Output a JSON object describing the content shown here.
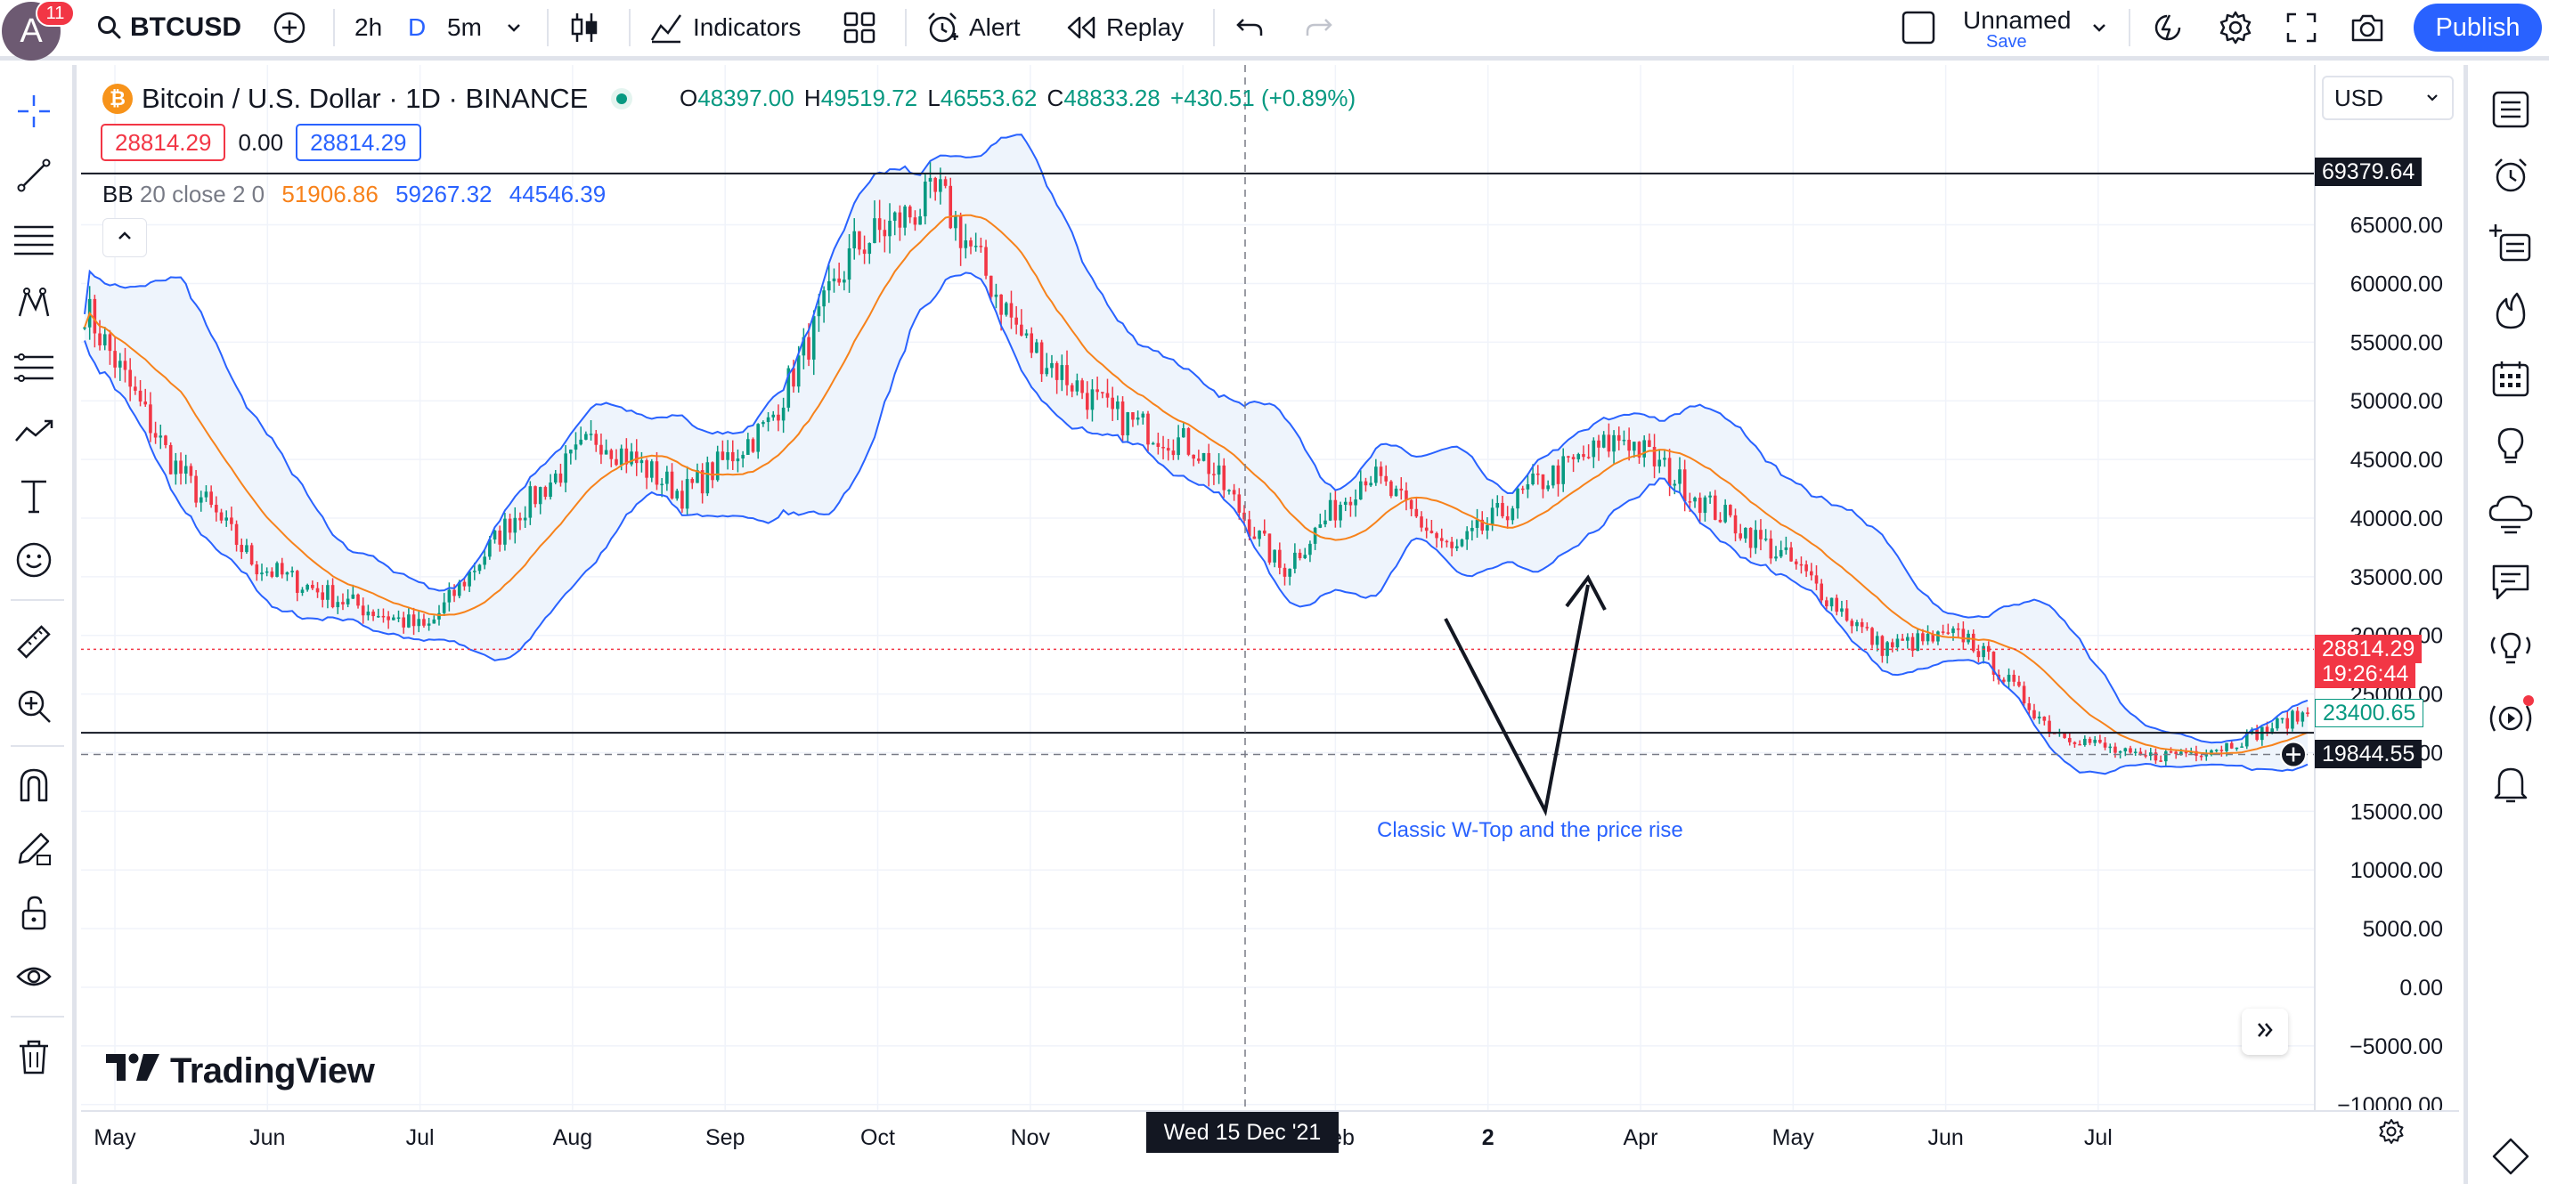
{
  "header": {
    "avatar_letter": "A",
    "notification_count": "11",
    "symbol": "BTCUSD",
    "intervals": [
      "2h",
      "D",
      "5m"
    ],
    "active_interval": "D",
    "indicators_label": "Indicators",
    "alert_label": "Alert",
    "replay_label": "Replay",
    "layout_name": "Unnamed",
    "save_label": "Save",
    "publish_label": "Publish"
  },
  "legend": {
    "coin_glyph": "₿",
    "title": "Bitcoin / U.S. Dollar · 1D · BINANCE",
    "open_key": "O",
    "open": "48397.00",
    "high_key": "H",
    "high": "49519.72",
    "low_key": "L",
    "low": "46553.62",
    "close_key": "C",
    "close": "48833.28",
    "change": "+430.51 (+0.89%)",
    "sell_price": "28814.29",
    "spread": "0.00",
    "buy_price": "28814.29",
    "bb_name": "BB",
    "bb_params": "20 close 2 0",
    "bb_basis": "51906.86",
    "bb_upper": "59267.32",
    "bb_lower": "44546.39"
  },
  "currency": "USD",
  "annotation_text": "Classic W-Top and the price rise",
  "brand": "TradingView",
  "crosshair_time_label": "Wed 15 Dec '21",
  "price_scale": {
    "labels": [
      "65000.00",
      "60000.00",
      "55000.00",
      "50000.00",
      "45000.00",
      "40000.00",
      "35000.00",
      "30000.00",
      "25000.00",
      "20000.00",
      "15000.00",
      "10000.00",
      "5000.00",
      "0.00",
      "−5000.00",
      "−10000.00"
    ],
    "values": [
      65000,
      60000,
      55000,
      50000,
      45000,
      40000,
      35000,
      30000,
      25000,
      20000,
      15000,
      10000,
      5000,
      0,
      -5000,
      -10000
    ],
    "hline_top_label": "69379.64",
    "hline_top_value": 69379.64,
    "last_price_label": "28814.29",
    "last_price_value": 28814.29,
    "countdown_label": "19:26:44",
    "green_label": "23400.65",
    "hline_bottom_value": 21700,
    "crosshair_price_label": "19844.55",
    "crosshair_price_value": 19844.55
  },
  "time_scale": {
    "labels": [
      "May",
      "Jun",
      "Jul",
      "Aug",
      "Sep",
      "Oct",
      "Nov",
      "2",
      "Feb",
      "2",
      "Apr",
      "May",
      "Jun",
      "Jul"
    ]
  },
  "colors": {
    "up": "#089981",
    "down": "#f23645",
    "bb_band": "#2962ff",
    "bb_basis": "#f7821b",
    "bb_fill": "#eef4fc",
    "accent": "#2962ff"
  },
  "chart_data": {
    "type": "candlestick",
    "title": "Bitcoin / U.S. Dollar · 1D · BINANCE",
    "x_range": [
      "2021-05",
      "2022-07"
    ],
    "ylim": [
      -10000,
      70000
    ],
    "approx_close_path": [
      {
        "t": "2021-05",
        "close": 58000
      },
      {
        "t": "2021-05-mid",
        "close": 45000
      },
      {
        "t": "2021-06",
        "close": 36000
      },
      {
        "t": "2021-07",
        "close": 33000
      },
      {
        "t": "2021-07-20",
        "close": 30500
      },
      {
        "t": "2021-08",
        "close": 40000
      },
      {
        "t": "2021-09",
        "close": 47000
      },
      {
        "t": "2021-09-20",
        "close": 42000
      },
      {
        "t": "2021-10",
        "close": 48000
      },
      {
        "t": "2021-10-20",
        "close": 63000
      },
      {
        "t": "2021-11-10",
        "close": 67500
      },
      {
        "t": "2021-12",
        "close": 55000
      },
      {
        "t": "2021-12-15",
        "close": 48833
      },
      {
        "t": "2022-01",
        "close": 46000
      },
      {
        "t": "2022-01-24",
        "close": 35500
      },
      {
        "t": "2022-02-10",
        "close": 44000
      },
      {
        "t": "2022-02-24",
        "close": 37000
      },
      {
        "t": "2022-03",
        "close": 43000
      },
      {
        "t": "2022-03-30",
        "close": 47000
      },
      {
        "t": "2022-04",
        "close": 41000
      },
      {
        "t": "2022-05-05",
        "close": 36000
      },
      {
        "t": "2022-05-12",
        "close": 29000
      },
      {
        "t": "2022-06",
        "close": 30000
      },
      {
        "t": "2022-06-14",
        "close": 22000
      },
      {
        "t": "2022-06-18",
        "close": 19500
      },
      {
        "t": "2022-07",
        "close": 20500
      },
      {
        "t": "2022-07-20",
        "close": 23400
      }
    ],
    "indicator": {
      "name": "BB",
      "params": "20 close 2 0",
      "basis": 51906.86,
      "upper": 59267.32,
      "lower": 44546.39
    },
    "horizontal_lines": [
      69379.64,
      21700
    ]
  }
}
